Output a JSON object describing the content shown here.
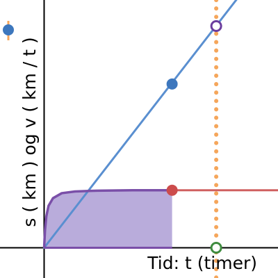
{
  "chart_data": {
    "type": "line",
    "xlabel": "Tid: t (timer)",
    "ylabel": "s ( km ) og v ( km / t )",
    "xlim": [
      -1,
      5.3
    ],
    "ylim": [
      -0.72,
      5.9
    ],
    "grid": false,
    "series": [
      {
        "color": "#5a8fd0",
        "x": [
          0,
          4.5
        ],
        "y": [
          0,
          6.1
        ]
      },
      {
        "color": "#7a4fa8",
        "points": [
          [
            0,
            0
          ],
          [
            0.02,
            0.42
          ],
          [
            0.05,
            0.75
          ],
          [
            0.1,
            1.0
          ],
          [
            0.2,
            1.18
          ],
          [
            0.4,
            1.3
          ],
          [
            0.7,
            1.34
          ],
          [
            1.2,
            1.36
          ],
          [
            2.0,
            1.37
          ],
          [
            2.9,
            1.37
          ]
        ]
      },
      {
        "color": "#d06060",
        "x": [
          2.9,
          5.3
        ],
        "y": [
          1.37,
          1.37
        ]
      }
    ],
    "shaded_area": {
      "color": "#b9acdb",
      "x_from": 0,
      "x_to": 2.9
    },
    "markers": [
      {
        "x": 2.9,
        "y": 3.9,
        "color": "#3d77bd",
        "style": "filled"
      },
      {
        "x": 2.9,
        "y": 1.37,
        "color": "#cc4c4c",
        "style": "filled"
      },
      {
        "x": 3.9,
        "y": 5.28,
        "color": "#6b3d9e",
        "style": "hollow"
      },
      {
        "x": 3.9,
        "y": 0,
        "color": "#3f8c3f",
        "style": "hollow"
      }
    ],
    "vertical_line": {
      "x": 3.9,
      "color": "#f5a65b",
      "style": "dotted"
    },
    "legend_icon": {
      "color": "#3d77bd",
      "stroke": "#f5a65b"
    }
  }
}
